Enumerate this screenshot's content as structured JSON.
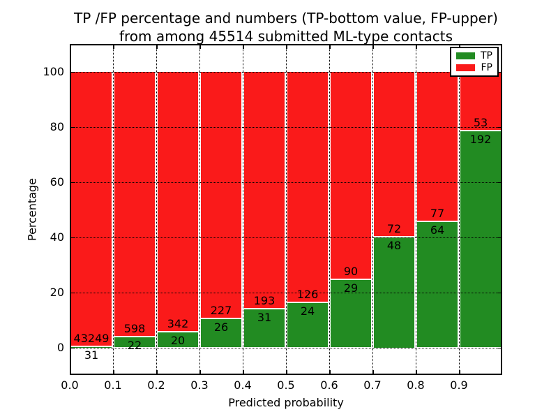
{
  "figure": {
    "title_line1": "TP /FP percentage and numbers (TP-bottom value, FP-upper)",
    "title_line2": "from among 45514 submitted ML-type contacts",
    "xlabel": "Predicted probability",
    "ylabel": "Percentage",
    "background_color": "#ffffff"
  },
  "legend": {
    "position": "upper right",
    "entries": [
      {
        "label": "TP",
        "color": "#228b22"
      },
      {
        "label": "FP",
        "color": "#fa1a1a"
      }
    ]
  },
  "chart_data": {
    "type": "bar",
    "stacked": true,
    "normalized_to_percent": true,
    "title": "TP /FP percentage and numbers (TP-bottom value, FP-upper) from among 45514 submitted ML-type contacts",
    "xlabel": "Predicted probability",
    "ylabel": "Percentage",
    "xlim": [
      0.0,
      1.0
    ],
    "ylim": [
      -10,
      110
    ],
    "grid": true,
    "grid_style": "dotted",
    "grid_color": "#000000",
    "x_tick_values": [
      0.0,
      0.1,
      0.2,
      0.3,
      0.4,
      0.5,
      0.6,
      0.7,
      0.8,
      0.9
    ],
    "x_tick_labels": [
      "0.0",
      "0.1",
      "0.2",
      "0.3",
      "0.4",
      "0.5",
      "0.6",
      "0.7",
      "0.8",
      "0.9"
    ],
    "y_tick_values": [
      0,
      20,
      40,
      60,
      80,
      100
    ],
    "y_tick_labels": [
      "0",
      "20",
      "40",
      "60",
      "80",
      "100"
    ],
    "bin_width": 0.1,
    "categories": [
      "0.0-0.1",
      "0.1-0.2",
      "0.2-0.3",
      "0.3-0.4",
      "0.4-0.5",
      "0.5-0.6",
      "0.6-0.7",
      "0.7-0.8",
      "0.8-0.9",
      "0.9-1.0"
    ],
    "series": [
      {
        "name": "TP",
        "position": "bottom",
        "color": "#228b22",
        "counts": [
          31,
          22,
          20,
          26,
          31,
          24,
          29,
          48,
          64,
          192
        ]
      },
      {
        "name": "FP",
        "position": "top",
        "color": "#fa1a1a",
        "counts": [
          43249,
          598,
          342,
          227,
          193,
          126,
          90,
          72,
          77,
          53
        ]
      }
    ],
    "bar_edge_color": "#ffffff",
    "legend_position": "upper right"
  }
}
